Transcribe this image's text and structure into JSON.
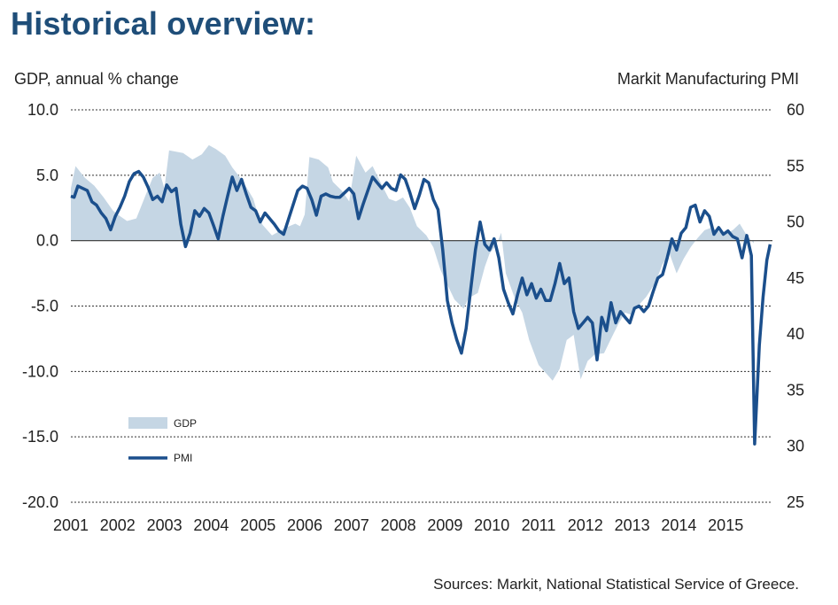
{
  "title": "Historical overview:",
  "source": "Sources: Markit, National Statistical Service of Greece.",
  "colors": {
    "title": "#1f4e79",
    "gdp": "#c5d6e4",
    "pmi": "#1b4f8c",
    "grid": "#333333"
  },
  "chart_data": {
    "type": "area",
    "left_axis_label": "GDP, annual % change",
    "right_axis_label": "Markit Manufacturing PMI",
    "left_ylim": [
      -20,
      10
    ],
    "right_ylim": [
      25,
      60
    ],
    "left_ticks": [
      "10.0",
      "5.0",
      "0.0",
      "-5.0",
      "-10.0",
      "-15.0",
      "-20.0"
    ],
    "right_ticks": [
      "60",
      "55",
      "50",
      "45",
      "40",
      "35",
      "30",
      "25"
    ],
    "x_labels": [
      "2001",
      "2002",
      "2003",
      "2004",
      "2005",
      "2006",
      "2007",
      "2008",
      "2009",
      "2010",
      "2011",
      "2012",
      "2013",
      "2014",
      "2015"
    ],
    "x_range": [
      2001.0,
      2016.0
    ],
    "grid": "dashed horizontal",
    "legend": {
      "position": "bottom-left",
      "entries": [
        "GDP",
        "PMI"
      ]
    },
    "series": [
      {
        "name": "GDP",
        "kind": "area",
        "axis": "left",
        "points": [
          [
            2001.0,
            4.0
          ],
          [
            2001.1,
            5.7
          ],
          [
            2001.3,
            4.8
          ],
          [
            2001.5,
            4.2
          ],
          [
            2001.7,
            3.3
          ],
          [
            2001.9,
            2.3
          ],
          [
            2002.0,
            2.0
          ],
          [
            2002.2,
            1.5
          ],
          [
            2002.4,
            1.7
          ],
          [
            2002.6,
            3.5
          ],
          [
            2002.75,
            4.8
          ],
          [
            2002.9,
            5.2
          ],
          [
            2003.0,
            4.0
          ],
          [
            2003.1,
            6.9
          ],
          [
            2003.4,
            6.7
          ],
          [
            2003.6,
            6.2
          ],
          [
            2003.8,
            6.6
          ],
          [
            2003.95,
            7.3
          ],
          [
            2004.1,
            7.0
          ],
          [
            2004.3,
            6.5
          ],
          [
            2004.45,
            5.6
          ],
          [
            2004.6,
            4.9
          ],
          [
            2004.75,
            4.1
          ],
          [
            2004.9,
            3.2
          ],
          [
            2005.0,
            2.0
          ],
          [
            2005.1,
            1.2
          ],
          [
            2005.3,
            0.4
          ],
          [
            2005.45,
            0.7
          ],
          [
            2005.6,
            1.0
          ],
          [
            2005.8,
            1.3
          ],
          [
            2005.9,
            1.1
          ],
          [
            2006.0,
            2.0
          ],
          [
            2006.1,
            6.4
          ],
          [
            2006.3,
            6.2
          ],
          [
            2006.5,
            5.6
          ],
          [
            2006.6,
            4.5
          ],
          [
            2006.8,
            3.8
          ],
          [
            2006.95,
            3.0
          ],
          [
            2007.1,
            6.5
          ],
          [
            2007.3,
            5.2
          ],
          [
            2007.45,
            5.7
          ],
          [
            2007.6,
            4.6
          ],
          [
            2007.8,
            3.2
          ],
          [
            2007.95,
            3.0
          ],
          [
            2008.1,
            3.3
          ],
          [
            2008.25,
            2.5
          ],
          [
            2008.4,
            1.1
          ],
          [
            2008.6,
            0.4
          ],
          [
            2008.75,
            -0.5
          ],
          [
            2008.9,
            -2.2
          ],
          [
            2009.0,
            -3.0
          ],
          [
            2009.2,
            -4.5
          ],
          [
            2009.4,
            -5.2
          ],
          [
            2009.5,
            -4.4
          ],
          [
            2009.7,
            -4.0
          ],
          [
            2009.85,
            -2.0
          ],
          [
            2009.95,
            -1.0
          ],
          [
            2010.1,
            -0.3
          ],
          [
            2010.2,
            0.6
          ],
          [
            2010.3,
            -2.5
          ],
          [
            2010.5,
            -4.5
          ],
          [
            2010.65,
            -5.5
          ],
          [
            2010.8,
            -7.6
          ],
          [
            2011.0,
            -9.5
          ],
          [
            2011.2,
            -10.3
          ],
          [
            2011.3,
            -10.7
          ],
          [
            2011.45,
            -9.8
          ],
          [
            2011.6,
            -7.6
          ],
          [
            2011.75,
            -7.2
          ],
          [
            2011.9,
            -10.6
          ],
          [
            2012.05,
            -9.2
          ],
          [
            2012.2,
            -8.7
          ],
          [
            2012.4,
            -8.6
          ],
          [
            2012.55,
            -7.5
          ],
          [
            2012.7,
            -6.4
          ],
          [
            2012.85,
            -5.5
          ],
          [
            2013.0,
            -5.7
          ],
          [
            2013.15,
            -4.9
          ],
          [
            2013.3,
            -4.3
          ],
          [
            2013.5,
            -3.2
          ],
          [
            2013.65,
            -1.8
          ],
          [
            2013.8,
            -1.0
          ],
          [
            2013.95,
            -2.5
          ],
          [
            2014.1,
            -1.4
          ],
          [
            2014.25,
            -0.5
          ],
          [
            2014.4,
            0.2
          ],
          [
            2014.55,
            0.8
          ],
          [
            2014.7,
            1.0
          ],
          [
            2014.9,
            0.6
          ],
          [
            2015.0,
            0.5
          ],
          [
            2015.15,
            0.8
          ],
          [
            2015.3,
            1.3
          ],
          [
            2015.45,
            0.4
          ],
          [
            2015.6,
            -0.2
          ]
        ]
      },
      {
        "name": "PMI",
        "kind": "line",
        "axis": "right",
        "points": [
          [
            2001.0,
            52.3
          ],
          [
            2001.07,
            52.2
          ],
          [
            2001.15,
            53.2
          ],
          [
            2001.25,
            53.0
          ],
          [
            2001.35,
            52.8
          ],
          [
            2001.45,
            51.8
          ],
          [
            2001.55,
            51.5
          ],
          [
            2001.65,
            50.8
          ],
          [
            2001.75,
            50.3
          ],
          [
            2001.85,
            49.3
          ],
          [
            2001.95,
            50.5
          ],
          [
            2002.05,
            51.3
          ],
          [
            2002.15,
            52.3
          ],
          [
            2002.25,
            53.6
          ],
          [
            2002.35,
            54.3
          ],
          [
            2002.45,
            54.5
          ],
          [
            2002.55,
            54.0
          ],
          [
            2002.65,
            53.1
          ],
          [
            2002.75,
            52.0
          ],
          [
            2002.85,
            52.3
          ],
          [
            2002.95,
            51.8
          ],
          [
            2003.05,
            53.3
          ],
          [
            2003.15,
            52.7
          ],
          [
            2003.25,
            53.0
          ],
          [
            2003.35,
            49.8
          ],
          [
            2003.45,
            47.8
          ],
          [
            2003.55,
            49.0
          ],
          [
            2003.65,
            51.0
          ],
          [
            2003.75,
            50.5
          ],
          [
            2003.85,
            51.2
          ],
          [
            2003.95,
            50.8
          ],
          [
            2004.05,
            49.7
          ],
          [
            2004.15,
            48.5
          ],
          [
            2004.25,
            50.5
          ],
          [
            2004.35,
            52.3
          ],
          [
            2004.45,
            54.0
          ],
          [
            2004.55,
            52.8
          ],
          [
            2004.65,
            53.8
          ],
          [
            2004.75,
            52.5
          ],
          [
            2004.85,
            51.3
          ],
          [
            2004.95,
            51.0
          ],
          [
            2005.05,
            50.0
          ],
          [
            2005.15,
            50.8
          ],
          [
            2005.25,
            50.3
          ],
          [
            2005.35,
            49.8
          ],
          [
            2005.45,
            49.2
          ],
          [
            2005.55,
            48.9
          ],
          [
            2005.65,
            50.2
          ],
          [
            2005.75,
            51.5
          ],
          [
            2005.85,
            52.8
          ],
          [
            2005.95,
            53.2
          ],
          [
            2006.05,
            53.0
          ],
          [
            2006.15,
            52.0
          ],
          [
            2006.25,
            50.6
          ],
          [
            2006.35,
            52.3
          ],
          [
            2006.45,
            52.5
          ],
          [
            2006.55,
            52.3
          ],
          [
            2006.65,
            52.2
          ],
          [
            2006.75,
            52.2
          ],
          [
            2006.85,
            52.6
          ],
          [
            2006.95,
            53.0
          ],
          [
            2007.05,
            52.5
          ],
          [
            2007.15,
            50.3
          ],
          [
            2007.25,
            51.6
          ],
          [
            2007.35,
            52.8
          ],
          [
            2007.45,
            54.0
          ],
          [
            2007.55,
            53.5
          ],
          [
            2007.65,
            53.0
          ],
          [
            2007.75,
            53.5
          ],
          [
            2007.85,
            53.0
          ],
          [
            2007.95,
            52.8
          ],
          [
            2008.05,
            54.2
          ],
          [
            2008.15,
            53.8
          ],
          [
            2008.25,
            52.6
          ],
          [
            2008.35,
            51.2
          ],
          [
            2008.45,
            52.4
          ],
          [
            2008.55,
            53.8
          ],
          [
            2008.65,
            53.5
          ],
          [
            2008.75,
            52.0
          ],
          [
            2008.85,
            51.1
          ],
          [
            2008.95,
            47.5
          ],
          [
            2009.05,
            43.0
          ],
          [
            2009.15,
            41.0
          ],
          [
            2009.25,
            39.5
          ],
          [
            2009.35,
            38.3
          ],
          [
            2009.45,
            40.5
          ],
          [
            2009.55,
            44.0
          ],
          [
            2009.65,
            47.5
          ],
          [
            2009.75,
            50.0
          ],
          [
            2009.85,
            48.0
          ],
          [
            2009.95,
            47.5
          ],
          [
            2010.05,
            48.5
          ],
          [
            2010.15,
            46.8
          ],
          [
            2010.25,
            44.0
          ],
          [
            2010.35,
            42.8
          ],
          [
            2010.45,
            41.8
          ],
          [
            2010.55,
            43.5
          ],
          [
            2010.65,
            45.0
          ],
          [
            2010.75,
            43.5
          ],
          [
            2010.85,
            44.5
          ],
          [
            2010.95,
            43.2
          ],
          [
            2011.05,
            44.0
          ],
          [
            2011.15,
            43.0
          ],
          [
            2011.25,
            43.0
          ],
          [
            2011.35,
            44.5
          ],
          [
            2011.45,
            46.3
          ],
          [
            2011.55,
            44.5
          ],
          [
            2011.65,
            45.0
          ],
          [
            2011.75,
            42.0
          ],
          [
            2011.85,
            40.5
          ],
          [
            2011.95,
            41.0
          ],
          [
            2012.05,
            41.5
          ],
          [
            2012.15,
            41.0
          ],
          [
            2012.25,
            37.7
          ],
          [
            2012.35,
            41.5
          ],
          [
            2012.45,
            40.3
          ],
          [
            2012.55,
            42.8
          ],
          [
            2012.65,
            41.0
          ],
          [
            2012.75,
            42.0
          ],
          [
            2012.85,
            41.5
          ],
          [
            2012.95,
            41.0
          ],
          [
            2013.05,
            42.3
          ],
          [
            2013.15,
            42.5
          ],
          [
            2013.25,
            42.0
          ],
          [
            2013.35,
            42.5
          ],
          [
            2013.45,
            43.8
          ],
          [
            2013.55,
            45.0
          ],
          [
            2013.65,
            45.3
          ],
          [
            2013.75,
            46.8
          ],
          [
            2013.85,
            48.5
          ],
          [
            2013.95,
            47.5
          ],
          [
            2014.05,
            49.0
          ],
          [
            2014.15,
            49.5
          ],
          [
            2014.25,
            51.3
          ],
          [
            2014.35,
            51.5
          ],
          [
            2014.45,
            50.0
          ],
          [
            2014.55,
            51.0
          ],
          [
            2014.65,
            50.5
          ],
          [
            2014.75,
            48.9
          ],
          [
            2014.85,
            49.5
          ],
          [
            2014.95,
            48.9
          ],
          [
            2015.05,
            49.2
          ],
          [
            2015.15,
            48.7
          ],
          [
            2015.25,
            48.5
          ],
          [
            2015.35,
            46.8
          ],
          [
            2015.45,
            48.8
          ],
          [
            2015.55,
            47.0
          ],
          [
            2015.62,
            30.2
          ],
          [
            2015.72,
            39.0
          ],
          [
            2015.8,
            43.3
          ],
          [
            2015.88,
            46.6
          ],
          [
            2015.95,
            48.0
          ]
        ]
      }
    ]
  }
}
